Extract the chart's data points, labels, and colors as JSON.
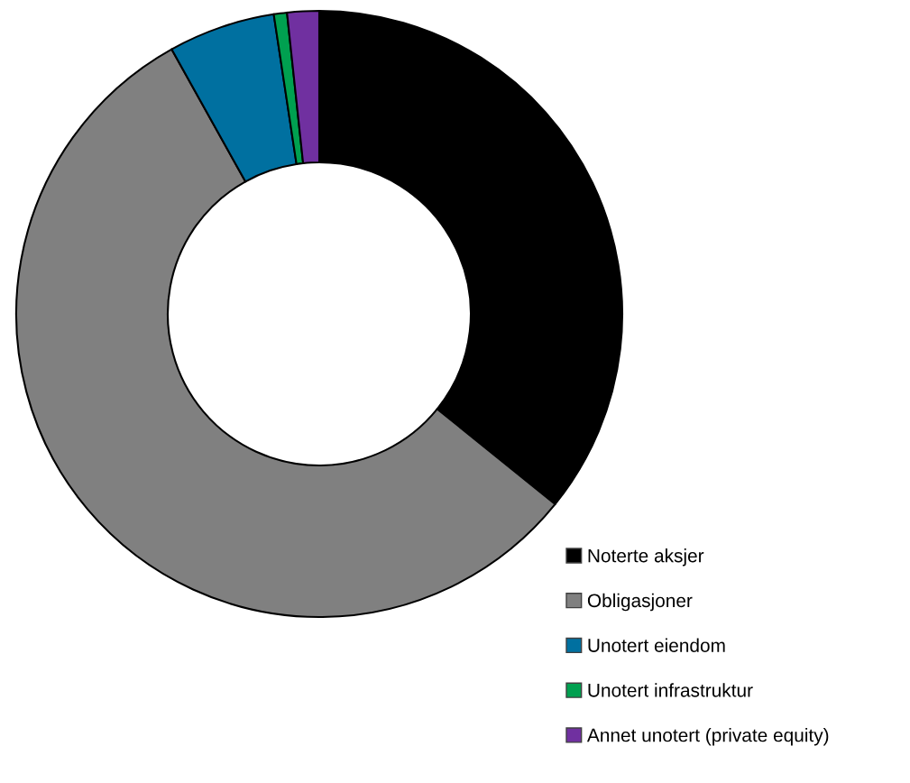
{
  "chart_data": {
    "type": "donut",
    "categories": [
      "Noterte aksjer",
      "Obligasjoner",
      "Unotert eiendom",
      "Unotert infrastruktur",
      "Annet unotert (private equity)"
    ],
    "values": [
      35.8,
      56.1,
      5.7,
      0.7,
      1.7
    ],
    "colors": [
      "#000000",
      "#808080",
      "#0070a0",
      "#00a050",
      "#7030a0"
    ],
    "legend": "bottom right"
  }
}
